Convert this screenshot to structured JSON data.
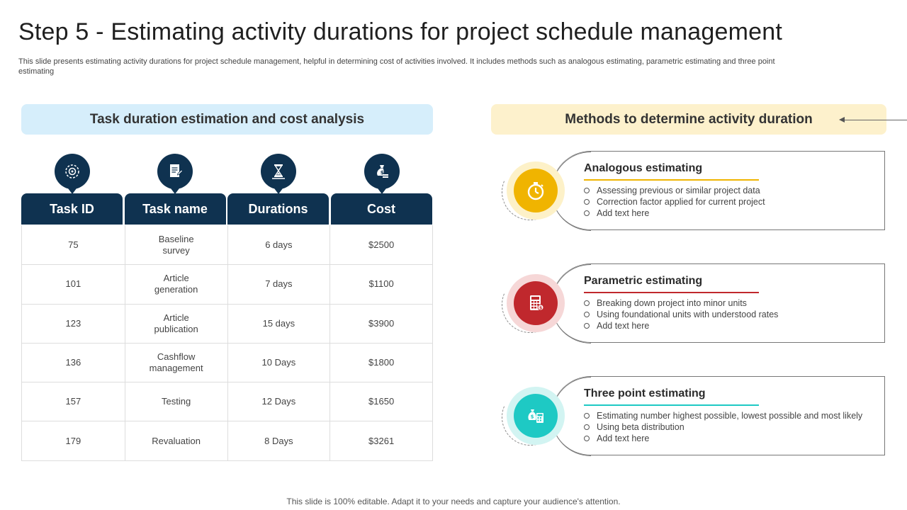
{
  "title": "Step 5 - Estimating activity durations for project schedule management",
  "subtitle": "This slide presents estimating activity durations for project schedule management, helpful in determining cost of activities involved. It includes methods such as analogous estimating, parametric estimating and three point estimating",
  "left_section": {
    "heading": "Task duration estimation and cost analysis",
    "column_icons": [
      "target-gear-icon",
      "document-icon",
      "hourglass-icon",
      "money-bag-icon"
    ],
    "columns": [
      "Task ID",
      "Task name",
      "Durations",
      "Cost"
    ],
    "rows": [
      [
        "75",
        "Baseline survey",
        "6 days",
        "$2500"
      ],
      [
        "101",
        "Article generation",
        "7 days",
        "$1100"
      ],
      [
        "123",
        "Article publication",
        "15 days",
        "$3900"
      ],
      [
        "136",
        "Cashflow management",
        "10 Days",
        "$1800"
      ],
      [
        "157",
        "Testing",
        "12 Days",
        "$1650"
      ],
      [
        "179",
        "Revaluation",
        "8 Days",
        "$3261"
      ]
    ]
  },
  "right_section": {
    "heading": "Methods to determine activity duration",
    "methods": [
      {
        "title": "Analogous estimating",
        "icon": "stopwatch-icon",
        "color": "#f0b400",
        "halo": "#fdf1c8",
        "bullets": [
          "Assessing previous or similar project data",
          "Correction factor applied for current project",
          "Add text here"
        ]
      },
      {
        "title": "Parametric estimating",
        "icon": "calculator-icon",
        "color": "#c0282d",
        "halo": "#f6d7d7",
        "bullets": [
          "Breaking down project into minor units",
          "Using foundational units with understood rates",
          "Add text here"
        ]
      },
      {
        "title": "Three point estimating",
        "icon": "money-calculator-icon",
        "color": "#1ec9c4",
        "halo": "#d2f4f2",
        "bullets": [
          "Estimating number highest possible, lowest possible and most likely",
          "Using beta distribution",
          "Add text here"
        ]
      }
    ]
  },
  "footer": "This slide is 100% editable. Adapt it to your needs and capture your audience's attention."
}
